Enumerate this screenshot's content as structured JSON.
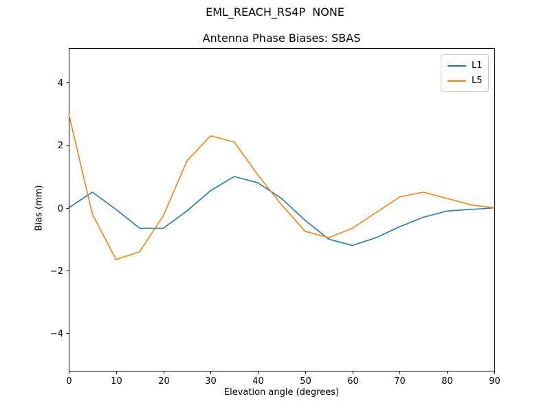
{
  "chart_data": {
    "type": "line",
    "suptitle": "EML_REACH_RS4P  NONE",
    "title": "Antenna Phase Biases: SBAS",
    "xlabel": "Elevation angle (degrees)",
    "ylabel": "Bias (mm)",
    "xlim": [
      0,
      90
    ],
    "ylim": [
      -5.2,
      5.1
    ],
    "x_ticks": [
      0,
      10,
      20,
      30,
      40,
      50,
      60,
      70,
      80,
      90
    ],
    "y_ticks": [
      -4,
      -2,
      0,
      2,
      4
    ],
    "grid": false,
    "legend_position": "upper right",
    "x": [
      0,
      5,
      10,
      15,
      20,
      25,
      30,
      35,
      40,
      45,
      50,
      55,
      60,
      65,
      70,
      75,
      80,
      85,
      90
    ],
    "series": [
      {
        "name": "L1",
        "color": "#1f77b4",
        "values": [
          0.0,
          0.5,
          -0.05,
          -0.65,
          -0.65,
          -0.1,
          0.55,
          1.0,
          0.8,
          0.3,
          -0.4,
          -1.0,
          -1.2,
          -0.95,
          -0.6,
          -0.3,
          -0.1,
          -0.05,
          0.0
        ]
      },
      {
        "name": "L5",
        "color": "#ff7f0e",
        "values": [
          3.0,
          -0.2,
          -1.65,
          -1.4,
          -0.25,
          1.5,
          2.3,
          2.1,
          1.05,
          0.1,
          -0.75,
          -0.95,
          -0.65,
          -0.15,
          0.35,
          0.5,
          0.3,
          0.1,
          0.0
        ]
      }
    ]
  },
  "style": {
    "axis_color": "#000000",
    "background": "#ffffff",
    "legend_border": "#cccccc"
  }
}
